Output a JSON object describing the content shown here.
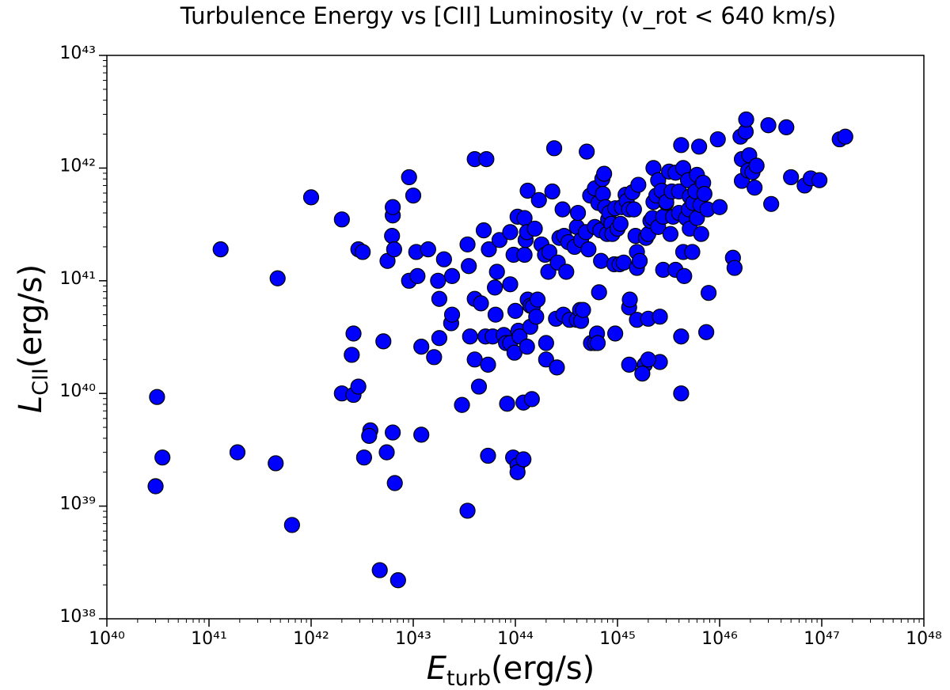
{
  "chart_data": {
    "type": "scatter",
    "title": "Turbulence Energy vs [CII] Luminosity (v_rot < 640 km/s)",
    "xlabel": {
      "symbol": "E",
      "subscript": "turb",
      "unit": "(erg/s)"
    },
    "ylabel": {
      "symbol": "L",
      "subscript": "CII",
      "unit": "(erg/s)"
    },
    "xscale": "log",
    "yscale": "log",
    "color": "#0000ff",
    "edgecolor": "#000000",
    "xlim": [
      1e+40,
      1e+48
    ],
    "ylim": [
      1e+38,
      1e+43
    ],
    "xticks": [
      {
        "value": 1e+40,
        "label": "10⁴⁰"
      },
      {
        "value": 1e+41,
        "label": "10⁴¹"
      },
      {
        "value": 1e+42,
        "label": "10⁴²"
      },
      {
        "value": 1e+43,
        "label": "10⁴³"
      },
      {
        "value": 1e+44,
        "label": "10⁴⁴"
      },
      {
        "value": 1e+45,
        "label": "10⁴⁵"
      },
      {
        "value": 1e+46,
        "label": "10⁴⁶"
      },
      {
        "value": 1e+47,
        "label": "10⁴⁷"
      },
      {
        "value": 1e+48,
        "label": "10⁴⁸"
      }
    ],
    "yticks": [
      {
        "value": 1e+38,
        "label": "10³⁸"
      },
      {
        "value": 1e+39,
        "label": "10³⁹"
      },
      {
        "value": 1e+40,
        "label": "10⁴⁰"
      },
      {
        "value": 1e+41,
        "label": "10⁴¹"
      },
      {
        "value": 1e+42,
        "label": "10⁴²"
      },
      {
        "value": 1e+43,
        "label": "10⁴³"
      }
    ],
    "x": [
      3.1e+40,
      3e+40,
      3.5e+40,
      1.3e+41,
      1.9e+41,
      4.5e+41,
      4.7e+41,
      6.5e+41,
      1e+42,
      2e+42,
      2e+42,
      2.5e+42,
      2.6e+42,
      2.6e+42,
      2.9e+42,
      2.9e+42,
      3.2e+42,
      3.3e+42,
      3.8e+42,
      3.7e+42,
      5.1e+42,
      5.5e+42,
      4.7e+42,
      5.6e+42,
      6.2e+42,
      6.3e+42,
      6.3e+42,
      6.5e+42,
      6.3e+42,
      6.6e+42,
      7.1e+42,
      9.1e+42,
      9.1e+42,
      1e+43,
      1.1e+43,
      1.07e+43,
      1.2e+43,
      1.2e+43,
      1.4e+43,
      1.6e+43,
      1.8e+43,
      1.75e+43,
      1.8e+43,
      2e+43,
      2.4e+43,
      2.35e+43,
      2.4e+43,
      3e+43,
      3.4e+43,
      3.4e+43,
      3.5e+43,
      3.6e+43,
      4e+43,
      4e+43,
      4e+43,
      4.4e+43,
      4.6e+43,
      4.9e+43,
      5.1e+43,
      5.4e+43,
      5.2e+43,
      5.4e+43,
      5.5e+43,
      6e+43,
      6.3e+43,
      6.4e+43,
      6.6e+43,
      7e+43,
      7.7e+43,
      8.1e+43,
      8.3e+43,
      8.9e+43,
      8.9e+43,
      8.9e+43,
      9.5e+43,
      9.6e+43,
      9.8e+43,
      1e+44,
      1.05e+44,
      1.05e+44,
      1.05e+44,
      1.07e+44,
      1.1e+44,
      1.2e+44,
      1.2e+44,
      1.23e+44,
      1.23e+44,
      1.26e+44,
      1.3e+44,
      1.3e+44,
      1.32e+44,
      1.32e+44,
      1.4e+44,
      1.4e+44,
      1.45e+44,
      1.48e+44,
      1.55e+44,
      1.6e+44,
      1.65e+44,
      1.7e+44,
      1.8e+44,
      1.95e+44,
      2e+44,
      2e+44,
      2.1e+44,
      2.15e+44,
      2.3e+44,
      2.4e+44,
      2.5e+44,
      2.55e+44,
      2.6e+44,
      2.7e+44,
      2.9e+44,
      2.95e+44,
      3e+44,
      3.15e+44,
      3.3e+44,
      3.4e+44,
      3.8e+44,
      4e+44,
      4e+44,
      4.1e+44,
      4.3e+44,
      4.4e+44,
      4.4e+44,
      4.6e+44,
      4.9e+44,
      5e+44,
      5.2e+44,
      5.4e+44,
      5.5e+44,
      6e+44,
      6e+44,
      6e+44,
      6.3e+44,
      6.4e+44,
      6.5e+44,
      6.6e+44,
      6.8e+44,
      6.9e+44,
      7.1e+44,
      7.2e+44,
      7.4e+44,
      7.6e+44,
      7.9e+44,
      8.1e+44,
      8.3e+44,
      8.7e+44,
      8.9e+44,
      9.3e+44,
      9.5e+44,
      9.5e+44,
      1e+45,
      1.05e+45,
      1.07e+45,
      1.1e+45,
      1.15e+45,
      1.2e+45,
      1.23e+45,
      1.3e+45,
      1.3e+45,
      1.32e+45,
      1.4e+45,
      1.45e+45,
      1.5e+45,
      1.55e+45,
      1.55e+45,
      1.6e+45,
      1.65e+45,
      1.55e+45,
      1.85e+45,
      1.9e+45,
      2e+45,
      2e+45,
      2.1e+45,
      2.2e+45,
      2.25e+45,
      2.25e+45,
      2.4e+45,
      2.5e+45,
      2.5e+45,
      2.6e+45,
      2.6e+45,
      2.7e+45,
      2.8e+45,
      2.8e+45,
      3e+45,
      3e+45,
      3.2e+45,
      3.3e+45,
      3.4e+45,
      3.5e+45,
      3.7e+45,
      3.7e+45,
      4e+45,
      4e+45,
      4.2e+45,
      4.4e+45,
      4.5e+45,
      4.4e+45,
      4.7e+45,
      4.9e+45,
      5e+45,
      5.1e+45,
      5.1e+45,
      5.4e+45,
      5.5e+45,
      5.8e+45,
      6e+45,
      6e+45,
      6.3e+45,
      6.5e+45,
      6.6e+45,
      6.9e+45,
      7.1e+45,
      4.2e+45,
      7.4e+45,
      7.6e+45,
      7.8e+45,
      9.6e+45,
      1e+46,
      1.35e+46,
      1.4e+46,
      1.6e+46,
      1.65e+46,
      1.65e+46,
      1.8e+46,
      1.82e+46,
      1.9e+46,
      1.95e+46,
      2.1e+46,
      2.2e+46,
      2.3e+46,
      3e+46,
      3.2e+46,
      4.5e+46,
      5e+46,
      6.8e+46,
      7.8e+46,
      9.5e+46,
      1.5e+47,
      1.7e+47,
      4.2e+45,
      1.3e+45,
      1.75e+45,
      2e+45
    ],
    "values": [
      9.3e+39,
      1.5e+39,
      2.7e+39,
      1.9e+41,
      3e+39,
      2.4e+39,
      1.05e+41,
      6.8e+38,
      5.5e+41,
      3.5e+41,
      1e+40,
      2.2e+40,
      3.4e+40,
      9.7e+39,
      1.15e+40,
      1.9e+41,
      1.8e+41,
      2.7e+39,
      4.7e+39,
      4.2e+39,
      2.9e+40,
      3e+39,
      2.7e+38,
      1.5e+41,
      2.5e+41,
      3.8e+41,
      4.5e+41,
      1.9e+41,
      4.5e+39,
      1.6e+39,
      2.2e+38,
      8.3e+41,
      1e+41,
      5.7e+41,
      1.1e+41,
      1.8e+41,
      4.3e+39,
      2.6e+40,
      1.9e+41,
      2.1e+40,
      6.9e+40,
      1e+41,
      3.1e+40,
      1.55e+41,
      1.1e+41,
      4.2e+40,
      5e+40,
      7.9e+39,
      9.1e+38,
      2.1e+41,
      1.35e+41,
      3.2e+40,
      2e+40,
      6.9e+40,
      1.2e+42,
      1.15e+40,
      6.3e+40,
      2.8e+41,
      3.2e+40,
      1.8e+40,
      1.2e+42,
      2.8e+39,
      1.9e+41,
      3.2e+40,
      8.7e+40,
      5e+40,
      1.2e+41,
      2.3e+41,
      3.3e+40,
      2.8e+40,
      8.1e+39,
      2.7e+41,
      9.3e+40,
      2.8e+40,
      2.7e+39,
      1.7e+41,
      2.3e+40,
      5.4e+40,
      2.3e+39,
      2e+39,
      3.7e+41,
      3.6e+40,
      3.2e+40,
      8.3e+39,
      2.6e+39,
      1.7e+41,
      3.6e+41,
      2.3e+41,
      2.7e+41,
      2.6e+40,
      6.3e+41,
      6.8e+40,
      6e+40,
      3.9e+40,
      8.9e+39,
      5.9e+40,
      2.9e+41,
      4.8e+40,
      6.8e+40,
      5.2e+41,
      2.1e+41,
      1.7e+41,
      2.8e+40,
      2e+40,
      1.2e+41,
      1.8e+41,
      6.2e+41,
      1.5e+42,
      4.6e+40,
      1.7e+40,
      1.45e+41,
      2.4e+41,
      4.3e+41,
      5e+40,
      2.5e+41,
      1.2e+41,
      2.2e+41,
      4.5e+40,
      2e+41,
      3e+41,
      4.5e+40,
      4e+41,
      5.5e+40,
      2.3e+41,
      4.4e+40,
      5.5e+40,
      2.7e+41,
      1.4e+42,
      1.9e+41,
      5.7e+41,
      2.8e+40,
      6.6e+41,
      3e+41,
      2.8e+40,
      3.4e+40,
      2.8e+40,
      4.9e+41,
      7.9e+40,
      2.8e+41,
      1.5e+41,
      8e+41,
      5.9e+41,
      8.9e+41,
      4.5e+41,
      2.6e+41,
      3.5e+41,
      4e+41,
      3.2e+41,
      2.6e+41,
      1.4e+41,
      4.4e+41,
      3.4e+40,
      2.9e+41,
      1.4e+41,
      3.2e+41,
      4.5e+41,
      1.45e+41,
      5.8e+41,
      5.1e+41,
      4.3e+41,
      5.8e+40,
      6.8e+40,
      6.1e+41,
      4.3e+41,
      2.5e+41,
      1.8e+41,
      1.3e+41,
      7.1e+41,
      1.5e+41,
      4.5e+40,
      1.8e+40,
      2.4e+41,
      4.6e+40,
      2.6e+41,
      3.4e+41,
      3.6e+41,
      1e+42,
      5e+41,
      5.7e+41,
      3e+41,
      7.8e+41,
      4.8e+40,
      1.9e+40,
      6.3e+41,
      3.7e+41,
      1.25e+41,
      4.9e+41,
      5e+41,
      9.3e+41,
      2.6e+41,
      6.2e+41,
      3.7e+41,
      9.1e+41,
      1.25e+41,
      4e+41,
      6.2e+41,
      1.6e+42,
      1e+42,
      1.1e+41,
      1.8e+41,
      3.6e+41,
      7.8e+41,
      4.3e+41,
      5.6e+41,
      2.9e+41,
      1.8e+41,
      4.9e+41,
      6.2e+41,
      8.7e+41,
      3.6e+41,
      1.55e+42,
      4.7e+41,
      2.6e+41,
      7.4e+41,
      5.9e+41,
      1e+40,
      3.5e+40,
      4.3e+41,
      7.8e+40,
      1.8e+42,
      4.5e+41,
      1.6e+41,
      1.3e+41,
      1.9e+42,
      1.2e+42,
      7.7e+41,
      2.1e+42,
      2.7e+42,
      9.5e+41,
      1.3e+42,
      9.2e+41,
      6.7e+41,
      1.05e+42,
      2.4e+42,
      4.8e+41,
      2.3e+42,
      8.3e+41,
      7e+41,
      8.1e+41,
      7.8e+41,
      1.8e+42,
      1.9e+42,
      3.2e+40,
      1.8e+40,
      1.5e+40,
      2e+40
    ]
  }
}
